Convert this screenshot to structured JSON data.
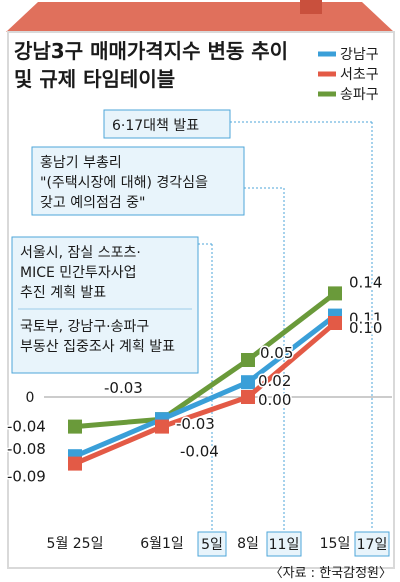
{
  "chart_data": {
    "type": "line",
    "title": "강남3구 매매가격지수 변동 추이\n및 규제 타임테이블",
    "xlabel": "",
    "ylabel": "",
    "ylim": [
      -0.1,
      0.15
    ],
    "grid": false,
    "legend_position": "top-right",
    "x": [
      "5월 25일",
      "6월1일",
      "8일",
      "15일"
    ],
    "series": [
      {
        "name": "강남구",
        "color": "#3a9fd8",
        "values": [
          -0.08,
          -0.03,
          0.02,
          0.11
        ],
        "labels": [
          "-0.08",
          "-0.03",
          "0.02",
          "0.11"
        ]
      },
      {
        "name": "서초구",
        "color": "#e35a46",
        "values": [
          -0.09,
          -0.04,
          0.0,
          0.1
        ],
        "labels": [
          "-0.09",
          "-0.04",
          "0.00",
          "0.10"
        ]
      },
      {
        "name": "송파구",
        "color": "#6a9a3a",
        "values": [
          -0.04,
          -0.03,
          0.05,
          0.14
        ],
        "labels": [
          "-0.04",
          "-0.03",
          "0.05",
          "0.14"
        ]
      }
    ],
    "zero_label": "0",
    "event_dates": [
      "5일",
      "11일",
      "17일"
    ],
    "annotations": [
      {
        "date": "17일",
        "text": "6·17대책 발표"
      },
      {
        "date": "11일",
        "text": "홍남기 부총리\n\"(주택시장에 대해) 경각심을\n갖고 예의점검 중\""
      },
      {
        "date": "5일",
        "text": "서울시, 잠실 스포츠·\nMICE 민간투자사업\n추진 계획 발표",
        "text2": "국토부, 강남구·송파구\n부동산 집중조사 계획 발표"
      }
    ],
    "source": "〈자료 : 한국감정원〉"
  },
  "colors": {
    "roof": "#e0705c",
    "roof_dark": "#c9503d",
    "frame": "#d9d9d9",
    "note_bg": "#e8f4fb",
    "note_border": "#4ea6d8"
  }
}
